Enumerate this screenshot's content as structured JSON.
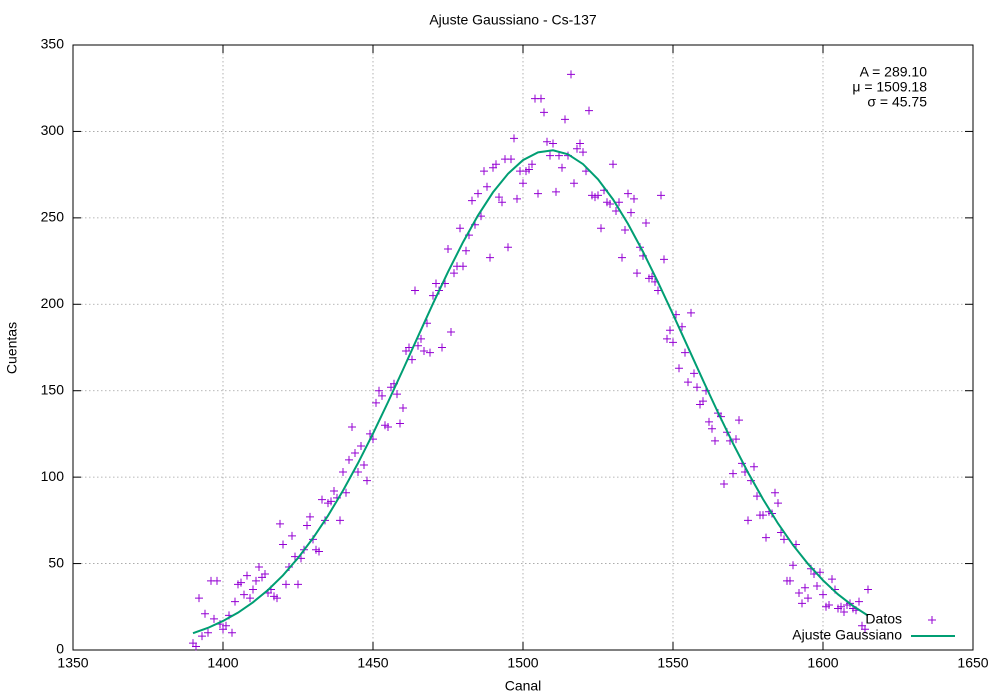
{
  "chart_data": {
    "type": "scatter",
    "title": "Ajuste Gaussiano - Cs-137",
    "x_label": "Canal",
    "y_label": "Cuentas",
    "annotations": [
      "A = 289.10",
      "μ = 1509.18",
      "σ = 45.75"
    ],
    "xlim": [
      1350,
      1650
    ],
    "xticks": [
      1350,
      1400,
      1450,
      1500,
      1550,
      1600,
      1650
    ],
    "ylim": [
      0,
      350
    ],
    "yticks": [
      0,
      50,
      100,
      150,
      200,
      250,
      300,
      350
    ],
    "grid": true,
    "legend": "bottom-right",
    "series": [
      {
        "name": "Datos",
        "type": "scatter",
        "color": "#9400d3",
        "x": [
          1390,
          1391,
          1392,
          1393,
          1394,
          1395,
          1396,
          1397,
          1398,
          1399,
          1400,
          1401,
          1402,
          1403,
          1404,
          1405,
          1406,
          1407,
          1408,
          1409,
          1410,
          1411,
          1412,
          1413,
          1414,
          1415,
          1416,
          1417,
          1418,
          1419,
          1420,
          1421,
          1422,
          1423,
          1424,
          1425,
          1426,
          1427,
          1428,
          1429,
          1430,
          1431,
          1432,
          1433,
          1434,
          1435,
          1436,
          1437,
          1438,
          1439,
          1440,
          1441,
          1442,
          1443,
          1444,
          1445,
          1446,
          1447,
          1448,
          1449,
          1450,
          1451,
          1452,
          1453,
          1454,
          1455,
          1456,
          1457,
          1458,
          1459,
          1460,
          1461,
          1462,
          1463,
          1464,
          1465,
          1466,
          1467,
          1468,
          1469,
          1470,
          1471,
          1472,
          1473,
          1474,
          1475,
          1476,
          1477,
          1478,
          1479,
          1480,
          1481,
          1482,
          1483,
          1484,
          1485,
          1486,
          1487,
          1488,
          1489,
          1490,
          1491,
          1492,
          1493,
          1494,
          1495,
          1496,
          1497,
          1498,
          1499,
          1500,
          1501,
          1502,
          1503,
          1504,
          1505,
          1506,
          1507,
          1508,
          1509,
          1510,
          1511,
          1512,
          1513,
          1514,
          1515,
          1516,
          1517,
          1518,
          1519,
          1520,
          1521,
          1522,
          1523,
          1524,
          1525,
          1526,
          1527,
          1528,
          1529,
          1530,
          1531,
          1532,
          1533,
          1534,
          1535,
          1536,
          1537,
          1538,
          1539,
          1540,
          1541,
          1542,
          1543,
          1544,
          1545,
          1546,
          1547,
          1548,
          1549,
          1550,
          1551,
          1552,
          1553,
          1554,
          1555,
          1556,
          1557,
          1558,
          1559,
          1560,
          1561,
          1562,
          1563,
          1564,
          1565,
          1566,
          1567,
          1568,
          1569,
          1570,
          1571,
          1572,
          1573,
          1574,
          1575,
          1576,
          1577,
          1578,
          1579,
          1580,
          1581,
          1582,
          1583,
          1584,
          1585,
          1586,
          1587,
          1588,
          1589,
          1590,
          1591,
          1592,
          1593,
          1594,
          1595,
          1596,
          1597,
          1598,
          1599,
          1600,
          1601,
          1602,
          1603,
          1604,
          1605,
          1606,
          1607,
          1608,
          1609,
          1610,
          1611,
          1612,
          1613,
          1614,
          1615
        ],
        "values": [
          4,
          2,
          30,
          8,
          21,
          10,
          40,
          18,
          40,
          15,
          12,
          14,
          20,
          10,
          28,
          38,
          39,
          32,
          43,
          30,
          35,
          40,
          48,
          42,
          44,
          33,
          35,
          31,
          30,
          73,
          61,
          38,
          48,
          66,
          54,
          38,
          53,
          58,
          72,
          77,
          64,
          58,
          57,
          87,
          75,
          85,
          86,
          92,
          88,
          75,
          103,
          91,
          110,
          129,
          114,
          103,
          118,
          107,
          98,
          125,
          122,
          143,
          150,
          147,
          130,
          129,
          152,
          154,
          148,
          131,
          140,
          173,
          175,
          168,
          208,
          176,
          180,
          173,
          189,
          172,
          205,
          212,
          208,
          175,
          212,
          232,
          184,
          218,
          222,
          244,
          222,
          231,
          240,
          260,
          246,
          264,
          251,
          277,
          268,
          227,
          279,
          281,
          262,
          259,
          284,
          233,
          284,
          296,
          261,
          277,
          270,
          277,
          278,
          281,
          319,
          264,
          319,
          311,
          294,
          286,
          293,
          265,
          286,
          279,
          307,
          286,
          333,
          270,
          290,
          293,
          288,
          277,
          312,
          263,
          262,
          263,
          244,
          266,
          259,
          258,
          281,
          254,
          259,
          227,
          243,
          264,
          253,
          261,
          218,
          233,
          228,
          247,
          215,
          216,
          213,
          208,
          263,
          226,
          180,
          185,
          178,
          194,
          163,
          187,
          172,
          155,
          195,
          160,
          152,
          142,
          144,
          150,
          132,
          128,
          121,
          137,
          135,
          96,
          126,
          121,
          102,
          122,
          133,
          108,
          103,
          75,
          98,
          106,
          89,
          78,
          78,
          65,
          80,
          79,
          91,
          85,
          68,
          64,
          40,
          40,
          49,
          61,
          33,
          27,
          36,
          30,
          47,
          44,
          37,
          45,
          32,
          25,
          26,
          41,
          35,
          24,
          25,
          22,
          26,
          27,
          24,
          23,
          28,
          14,
          12,
          35
        ]
      },
      {
        "name": "Ajuste Gaussiano",
        "type": "line",
        "color": "#009e73",
        "x": [
          1390,
          1395,
          1400,
          1405,
          1410,
          1415,
          1420,
          1425,
          1430,
          1435,
          1440,
          1445,
          1450,
          1455,
          1460,
          1465,
          1470,
          1475,
          1480,
          1485,
          1490,
          1495,
          1500,
          1505,
          1510,
          1515,
          1520,
          1525,
          1530,
          1535,
          1540,
          1545,
          1550,
          1555,
          1560,
          1565,
          1570,
          1575,
          1580,
          1585,
          1590,
          1595,
          1600,
          1605,
          1610,
          1615
        ],
        "values": [
          9.7,
          12.8,
          16.8,
          21.6,
          27.6,
          34.7,
          43.2,
          53.2,
          64.7,
          77.7,
          92.2,
          108.1,
          125.2,
          143.4,
          162.2,
          181.4,
          200.4,
          218.7,
          235.9,
          251.4,
          264.8,
          275.5,
          283.4,
          287.9,
          289.1,
          286.8,
          281.1,
          272.3,
          260.7,
          246.5,
          230.4,
          212.8,
          194.2,
          175.1,
          156.0,
          137.4,
          119.5,
          102.7,
          87.3,
          73.2,
          60.7,
          49.8,
          40.3,
          32.2,
          25.5,
          19.9
        ]
      }
    ]
  }
}
